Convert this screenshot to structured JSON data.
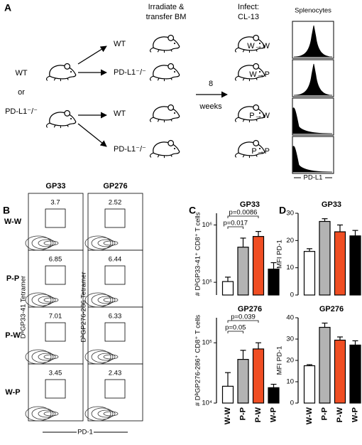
{
  "panel_a": {
    "label": "A",
    "step1": [
      "Irradiate &",
      "transfer BM"
    ],
    "step2": [
      "Infect:",
      "CL-13"
    ],
    "histogram_title": "Splenocytes",
    "donors": [
      "WT",
      "or",
      "PD-L1⁻/⁻"
    ],
    "recipients": [
      "WT",
      "PD-L1⁻/⁻",
      "WT",
      "PD-L1⁻/⁻"
    ],
    "interval": [
      "8",
      "weeks"
    ],
    "groups": [
      "W→W",
      "W→P",
      "P→W",
      "P→P"
    ],
    "histogram_x_label": "PD-L1"
  },
  "panel_b": {
    "label": "B",
    "columns": [
      "GP33",
      "GP276"
    ],
    "rows": [
      "W-W",
      "P-P",
      "P-W",
      "W-P"
    ],
    "gates": [
      [
        3.7,
        2.52
      ],
      [
        6.85,
        6.44
      ],
      [
        7.01,
        6.33
      ],
      [
        3.45,
        2.43
      ]
    ],
    "y_labels": [
      "DᵇGP33-41 Tetramer",
      "DᵇGP276-286 Tetramer"
    ],
    "x_label": "PD-1"
  },
  "panel_c_label": "C",
  "panel_d_label": "D",
  "chart_data": [
    {
      "type": "bar",
      "title": "GP33",
      "y_label": "# DᵇGP33-41⁺ CD8⁺ T cells",
      "values": [
        103000,
        410000,
        630000,
        170000
      ],
      "errors": [
        20000,
        180000,
        140000,
        50000
      ],
      "colors": [
        "#ffffff",
        "#b3b3b3",
        "#f04e23",
        "#000000"
      ],
      "log_scale": true,
      "ylim": [
        60000,
        1600000
      ],
      "yticks": [
        {
          "value": 100000,
          "label": "10⁵"
        },
        {
          "value": 1000000,
          "label": "10⁶"
        }
      ],
      "annotations": [
        "p=0.0086",
        "p=0.017"
      ]
    },
    {
      "type": "bar",
      "title": "GP276",
      "y_label": "# DᵇGP276-286⁺ CD8⁺ T cells",
      "categories": [
        "W-W",
        "P-P",
        "P-W",
        "W-P"
      ],
      "values": [
        19000,
        53000,
        79000,
        18000
      ],
      "errors": [
        13000,
        22000,
        21000,
        2500
      ],
      "colors": [
        "#ffffff",
        "#b3b3b3",
        "#f04e23",
        "#000000"
      ],
      "log_scale": true,
      "ylim": [
        10000,
        260000
      ],
      "yticks": [
        {
          "value": 10000,
          "label": "10⁴"
        },
        {
          "value": 100000,
          "label": "10⁵"
        }
      ],
      "annotations": [
        "p=0.039",
        "p=0.05"
      ]
    },
    {
      "type": "bar",
      "title": "GP33",
      "y_label": "MFI PD-1",
      "values": [
        16,
        27,
        23.2,
        21.7
      ],
      "errors": [
        1,
        1,
        2.5,
        2
      ],
      "colors": [
        "#ffffff",
        "#b3b3b3",
        "#f04e23",
        "#000000"
      ],
      "log_scale": false,
      "ylim": [
        0,
        30
      ],
      "yticks": [
        0,
        10,
        20,
        30
      ]
    },
    {
      "type": "bar",
      "title": "GP276",
      "y_label": "MFI PD-1",
      "categories": [
        "W-W",
        "P-P",
        "P-W",
        "W-P"
      ],
      "values": [
        17.5,
        35.5,
        29.5,
        27.2
      ],
      "errors": [
        0.5,
        2,
        1.5,
        2
      ],
      "colors": [
        "#ffffff",
        "#b3b3b3",
        "#f04e23",
        "#000000"
      ],
      "log_scale": false,
      "ylim": [
        0,
        40
      ],
      "yticks": [
        0,
        10,
        20,
        30,
        40
      ]
    }
  ]
}
